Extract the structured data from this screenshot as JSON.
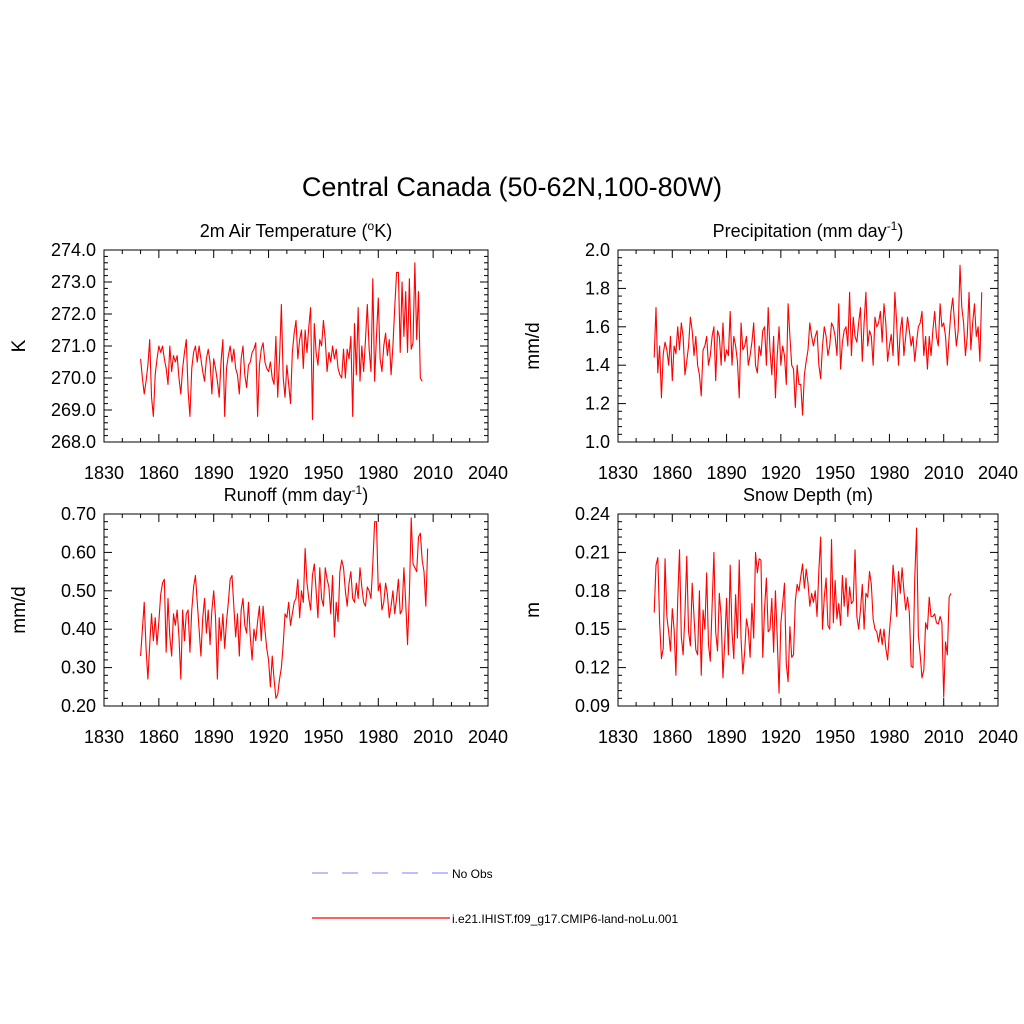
{
  "figure": {
    "title": "Central Canada (50-62N,100-80W)",
    "legend": [
      {
        "label": "No Obs",
        "color": "#9999ff",
        "dash": true
      },
      {
        "label": "i.e21.IHIST.f09_g17.CMIP6-land-noLu.001",
        "color": "#ff0000",
        "dash": false
      }
    ]
  },
  "chart_data": [
    {
      "type": "line",
      "title": "2m Air Temperature (oK)",
      "title_parts": {
        "pre": "2m Air Temperature (",
        "sup": "o",
        "post": "K)"
      },
      "xlabel": "",
      "ylabel": "K",
      "xlim": [
        1830,
        2040
      ],
      "ylim": [
        268,
        274
      ],
      "xticks": [
        "1830",
        "1860",
        "1890",
        "1920",
        "1950",
        "1980",
        "2010",
        "2040"
      ],
      "yticks": [
        "268.0",
        "269.0",
        "270.0",
        "271.0",
        "272.0",
        "273.0",
        "274.0"
      ],
      "series": [
        {
          "color": "#ff0000",
          "x_start": 1850,
          "x_step": 1,
          "values": [
            270.6,
            270.0,
            269.5,
            269.9,
            270.4,
            271.2,
            269.4,
            268.8,
            270.1,
            270.6,
            271.0,
            270.8,
            271.0,
            270.6,
            270.3,
            269.8,
            271.0,
            270.2,
            270.7,
            270.5,
            270.7,
            270.0,
            269.5,
            270.3,
            270.8,
            271.2,
            269.6,
            268.8,
            270.3,
            270.8,
            271.0,
            270.5,
            271.0,
            270.6,
            270.2,
            269.9,
            270.6,
            270.9,
            270.5,
            269.5,
            270.6,
            270.3,
            269.9,
            269.4,
            270.5,
            271.2,
            268.8,
            270.3,
            270.7,
            271.0,
            270.5,
            270.9,
            270.3,
            270.1,
            269.5,
            270.6,
            271.0,
            270.1,
            269.7,
            270.4,
            270.5,
            270.8,
            270.9,
            271.1,
            268.8,
            270.4,
            270.9,
            271.1,
            270.5,
            270.3,
            270.2,
            270.5,
            270.0,
            269.8,
            271.3,
            269.4,
            270.6,
            272.3,
            270.0,
            269.4,
            270.4,
            269.8,
            269.2,
            270.8,
            271.4,
            271.8,
            270.6,
            271.2,
            271.5,
            270.3,
            271.5,
            270.8,
            271.6,
            272.2,
            268.7,
            271.7,
            270.8,
            270.4,
            271.2,
            271.0,
            271.8,
            271.2,
            270.2,
            270.8,
            270.5,
            271.0,
            270.6,
            270.9,
            270.3,
            270.1,
            270.0,
            270.9,
            270.0,
            270.9,
            270.6,
            271.3,
            268.8,
            271.7,
            270.1,
            272.2,
            269.9,
            271.0,
            270.2,
            271.2,
            272.3,
            270.9,
            270.2,
            273.1,
            269.9,
            271.3,
            272.5,
            270.6,
            270.2,
            271.0,
            271.4,
            270.7,
            271.2,
            270.1,
            271.0,
            272.2,
            273.3,
            273.3,
            270.8,
            273.0,
            271.3,
            272.7,
            270.8,
            273.1,
            270.9,
            271.1,
            273.6,
            271.2,
            272.7,
            270.0,
            269.9
          ]
        }
      ]
    },
    {
      "type": "line",
      "title": "Precipitation (mm day-1)",
      "title_parts": {
        "pre": "Precipitation (mm day",
        "sup": "-1",
        "post": ")"
      },
      "xlabel": "",
      "ylabel": "mm/d",
      "xlim": [
        1830,
        2040
      ],
      "ylim": [
        1.0,
        2.0
      ],
      "xticks": [
        "1830",
        "1860",
        "1890",
        "1920",
        "1950",
        "1980",
        "2010",
        "2040"
      ],
      "yticks": [
        "1.0",
        "1.2",
        "1.4",
        "1.6",
        "1.8",
        "2.0"
      ],
      "series": [
        {
          "color": "#ff0000",
          "x_start": 1850,
          "x_step": 1,
          "values": [
            1.44,
            1.7,
            1.36,
            1.5,
            1.23,
            1.46,
            1.52,
            1.48,
            1.4,
            1.55,
            1.32,
            1.5,
            1.46,
            1.6,
            1.48,
            1.62,
            1.55,
            1.35,
            1.42,
            1.5,
            1.65,
            1.58,
            1.45,
            1.55,
            1.4,
            1.35,
            1.24,
            1.48,
            1.5,
            1.55,
            1.4,
            1.45,
            1.55,
            1.6,
            1.32,
            1.58,
            1.55,
            1.4,
            1.62,
            1.42,
            1.48,
            1.45,
            1.68,
            1.4,
            1.55,
            1.5,
            1.42,
            1.23,
            1.62,
            1.48,
            1.5,
            1.55,
            1.4,
            1.45,
            1.52,
            1.62,
            1.4,
            1.36,
            1.5,
            1.45,
            1.58,
            1.6,
            1.4,
            1.7,
            1.48,
            1.35,
            1.55,
            1.23,
            1.45,
            1.6,
            1.4,
            1.5,
            1.45,
            1.3,
            1.72,
            1.55,
            1.4,
            1.38,
            1.18,
            1.4,
            1.3,
            1.3,
            1.14,
            1.35,
            1.42,
            1.48,
            1.62,
            1.55,
            1.5,
            1.55,
            1.58,
            1.4,
            1.33,
            1.5,
            1.6,
            1.55,
            1.45,
            1.5,
            1.62,
            1.6,
            1.55,
            1.45,
            1.72,
            1.38,
            1.52,
            1.58,
            1.6,
            1.5,
            1.78,
            1.45,
            1.65,
            1.55,
            1.52,
            1.62,
            1.7,
            1.42,
            1.62,
            1.78,
            1.5,
            1.58,
            1.55,
            1.4,
            1.65,
            1.6,
            1.62,
            1.68,
            1.52,
            1.72,
            1.62,
            1.42,
            1.5,
            1.56,
            1.45,
            1.78,
            1.62,
            1.4,
            1.58,
            1.65,
            1.45,
            1.55,
            1.65,
            1.58,
            1.5,
            1.55,
            1.42,
            1.52,
            1.6,
            1.62,
            1.68,
            1.45,
            1.55,
            1.38,
            1.55,
            1.45,
            1.58,
            1.68,
            1.55,
            1.5,
            1.72,
            1.6,
            1.62,
            1.55,
            1.4,
            1.55,
            1.68,
            1.75,
            1.62,
            1.5,
            1.58,
            1.92,
            1.7,
            1.62,
            1.45,
            1.55,
            1.78,
            1.48,
            1.62,
            1.72,
            1.55,
            1.6,
            1.42,
            1.78
          ]
        }
      ]
    },
    {
      "type": "line",
      "title": "Runoff (mm day-1)",
      "title_parts": {
        "pre": "Runoff (mm day",
        "sup": "-1",
        "post": ")"
      },
      "xlabel": "",
      "ylabel": "mm/d",
      "xlim": [
        1830,
        2040
      ],
      "ylim": [
        0.2,
        0.7
      ],
      "xticks": [
        "1830",
        "1860",
        "1890",
        "1920",
        "1950",
        "1980",
        "2010",
        "2040"
      ],
      "yticks": [
        "0.20",
        "0.30",
        "0.40",
        "0.50",
        "0.60",
        "0.70"
      ],
      "series": [
        {
          "color": "#ff0000",
          "x_start": 1850,
          "x_step": 1,
          "values": [
            0.33,
            0.4,
            0.47,
            0.35,
            0.27,
            0.36,
            0.44,
            0.37,
            0.43,
            0.36,
            0.42,
            0.49,
            0.52,
            0.53,
            0.34,
            0.48,
            0.38,
            0.33,
            0.44,
            0.41,
            0.45,
            0.38,
            0.27,
            0.45,
            0.37,
            0.44,
            0.45,
            0.34,
            0.45,
            0.51,
            0.54,
            0.47,
            0.4,
            0.33,
            0.43,
            0.48,
            0.39,
            0.45,
            0.36,
            0.45,
            0.5,
            0.43,
            0.27,
            0.43,
            0.37,
            0.44,
            0.35,
            0.42,
            0.47,
            0.53,
            0.54,
            0.46,
            0.38,
            0.44,
            0.33,
            0.45,
            0.48,
            0.41,
            0.39,
            0.47,
            0.38,
            0.32,
            0.4,
            0.37,
            0.42,
            0.46,
            0.37,
            0.46,
            0.4,
            0.35,
            0.32,
            0.25,
            0.33,
            0.27,
            0.22,
            0.23,
            0.27,
            0.3,
            0.36,
            0.44,
            0.43,
            0.47,
            0.41,
            0.44,
            0.47,
            0.48,
            0.53,
            0.43,
            0.5,
            0.47,
            0.61,
            0.52,
            0.48,
            0.45,
            0.54,
            0.57,
            0.5,
            0.43,
            0.56,
            0.48,
            0.46,
            0.56,
            0.53,
            0.51,
            0.44,
            0.54,
            0.38,
            0.47,
            0.42,
            0.55,
            0.58,
            0.56,
            0.5,
            0.46,
            0.52,
            0.55,
            0.48,
            0.47,
            0.52,
            0.48,
            0.56,
            0.51,
            0.47,
            0.46,
            0.51,
            0.5,
            0.48,
            0.57,
            0.68,
            0.68,
            0.5,
            0.52,
            0.45,
            0.47,
            0.52,
            0.49,
            0.43,
            0.46,
            0.5,
            0.44,
            0.48,
            0.53,
            0.44,
            0.45,
            0.56,
            0.47,
            0.36,
            0.49,
            0.69,
            0.57,
            0.56,
            0.55,
            0.64,
            0.65,
            0.58,
            0.55,
            0.46,
            0.61
          ]
        }
      ]
    },
    {
      "type": "line",
      "title": "Snow Depth (m)",
      "title_parts": {
        "pre": "Snow Depth (m)",
        "sup": "",
        "post": ""
      },
      "xlabel": "",
      "ylabel": "m",
      "xlim": [
        1830,
        2040
      ],
      "ylim": [
        0.09,
        0.24
      ],
      "xticks": [
        "1830",
        "1860",
        "1890",
        "1920",
        "1950",
        "1980",
        "2010",
        "2040"
      ],
      "yticks": [
        "0.09",
        "0.12",
        "0.15",
        "0.18",
        "0.21",
        "0.24"
      ],
      "series": [
        {
          "color": "#ff0000",
          "x_start": 1850,
          "x_step": 1,
          "values": [
            0.163,
            0.2,
            0.206,
            0.155,
            0.127,
            0.135,
            0.205,
            0.16,
            0.148,
            0.133,
            0.166,
            0.15,
            0.114,
            0.173,
            0.212,
            0.144,
            0.13,
            0.162,
            0.207,
            0.148,
            0.137,
            0.186,
            0.16,
            0.134,
            0.13,
            0.18,
            0.114,
            0.165,
            0.15,
            0.194,
            0.138,
            0.125,
            0.168,
            0.21,
            0.148,
            0.133,
            0.178,
            0.16,
            0.112,
            0.14,
            0.174,
            0.13,
            0.2,
            0.148,
            0.127,
            0.177,
            0.143,
            0.204,
            0.142,
            0.115,
            0.132,
            0.158,
            0.15,
            0.128,
            0.17,
            0.143,
            0.21,
            0.194,
            0.205,
            0.204,
            0.128,
            0.166,
            0.19,
            0.148,
            0.15,
            0.174,
            0.132,
            0.18,
            0.143,
            0.1,
            0.155,
            0.17,
            0.186,
            0.123,
            0.109,
            0.152,
            0.128,
            0.13,
            0.172,
            0.185,
            0.18,
            0.191,
            0.201,
            0.182,
            0.197,
            0.186,
            0.168,
            0.178,
            0.171,
            0.18,
            0.16,
            0.196,
            0.222,
            0.15,
            0.175,
            0.19,
            0.153,
            0.15,
            0.22,
            0.155,
            0.188,
            0.158,
            0.17,
            0.153,
            0.192,
            0.168,
            0.19,
            0.16,
            0.183,
            0.17,
            0.172,
            0.212,
            0.16,
            0.15,
            0.165,
            0.185,
            0.15,
            0.178,
            0.175,
            0.195,
            0.185,
            0.158,
            0.15,
            0.148,
            0.14,
            0.15,
            0.138,
            0.15,
            0.135,
            0.126,
            0.148,
            0.165,
            0.2,
            0.185,
            0.16,
            0.195,
            0.178,
            0.198,
            0.18,
            0.165,
            0.175,
            0.163,
            0.121,
            0.12,
            0.19,
            0.229,
            0.145,
            0.13,
            0.112,
            0.118,
            0.155,
            0.15,
            0.175,
            0.16,
            0.16,
            0.162,
            0.155,
            0.154,
            0.16,
            0.155,
            0.097,
            0.14,
            0.13,
            0.175,
            0.178
          ]
        }
      ]
    }
  ]
}
